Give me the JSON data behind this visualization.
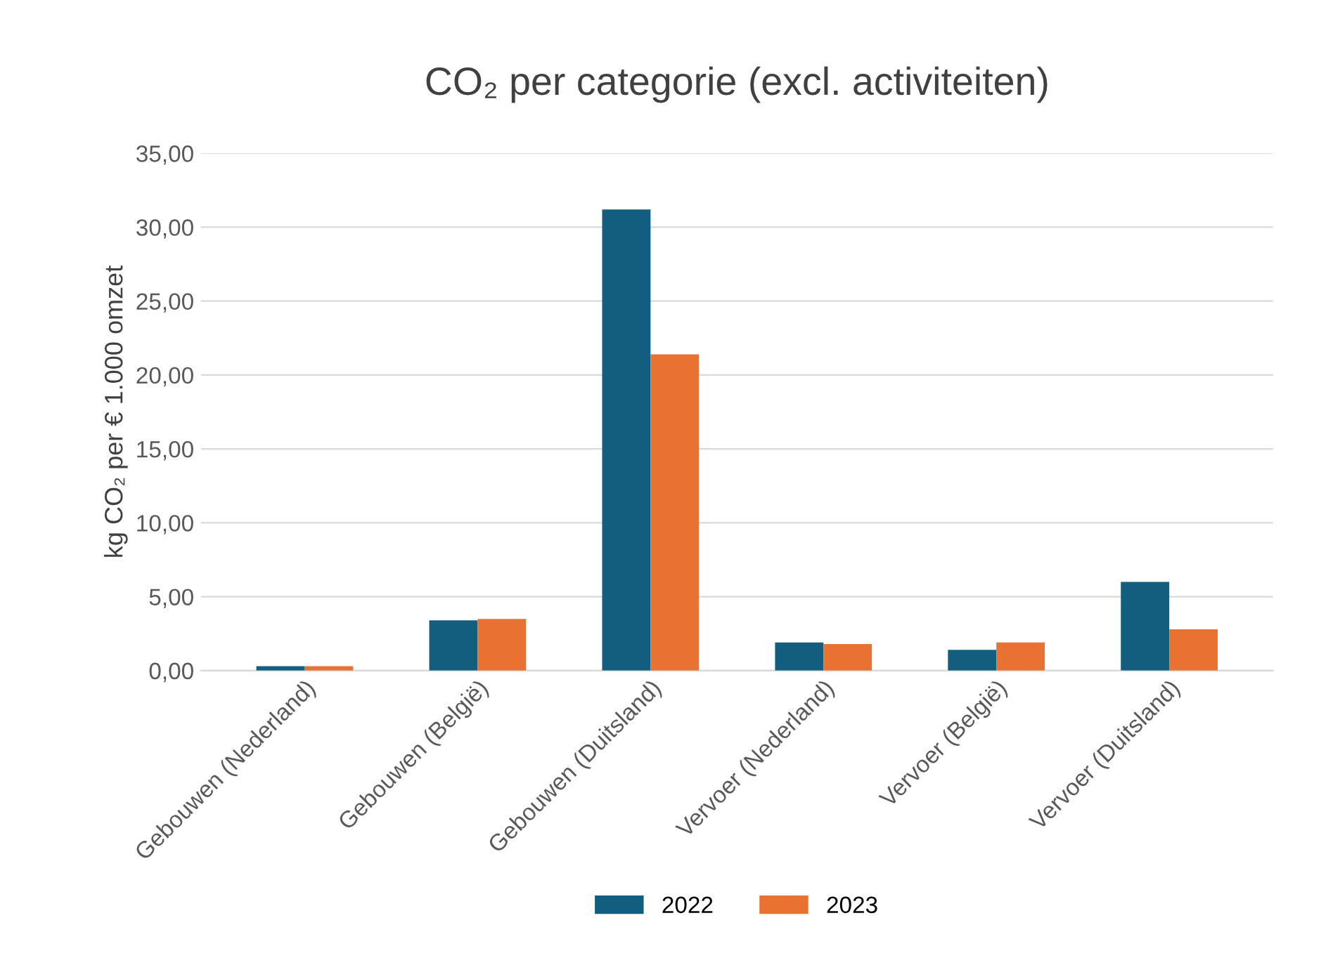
{
  "chart_data": {
    "type": "bar",
    "title": "CO₂ per categorie (excl. activiteiten)",
    "ylabel": "kg CO₂ per € 1.000 omzet",
    "categories": [
      "Gebouwen (Nederland)",
      "Gebouwen (België)",
      "Gebouwen (Duitsland)",
      "Vervoer (Nederland)",
      "Vervoer (België)",
      "Vervoer (Duitsland)"
    ],
    "series": [
      {
        "name": "2022",
        "color": "#135e7e",
        "values": [
          0.3,
          3.4,
          31.2,
          1.9,
          1.4,
          6.0
        ]
      },
      {
        "name": "2023",
        "color": "#e97132",
        "values": [
          0.3,
          3.5,
          21.4,
          1.8,
          1.9,
          2.8
        ]
      }
    ],
    "ylim": [
      0,
      35
    ],
    "yticks": [
      {
        "value": 0,
        "label": "0,00"
      },
      {
        "value": 5,
        "label": "5,00"
      },
      {
        "value": 10,
        "label": "10,00"
      },
      {
        "value": 15,
        "label": "15,00"
      },
      {
        "value": 20,
        "label": "20,00"
      },
      {
        "value": 25,
        "label": "25,00"
      },
      {
        "value": 30,
        "label": "30,00"
      },
      {
        "value": 35,
        "label": "35,00"
      }
    ],
    "grid": "y",
    "legend": "bottom"
  }
}
